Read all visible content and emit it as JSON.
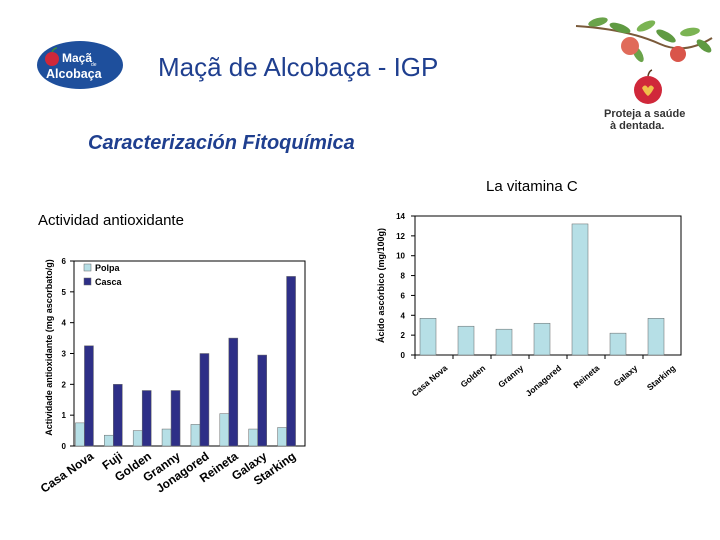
{
  "header": {
    "title": "Maçã de Alcobaça - IGP",
    "subtitle": "Caracterización Fitoquímica",
    "logo_text_line1": "Maçã",
    "logo_text_small": "de",
    "logo_text_line2": "Alcobaça",
    "tagline_line1": "Proteja a saúde",
    "tagline_line2": "à dentada.",
    "colors": {
      "title": "#1f3f8f",
      "logo_bg": "#1e4f9c",
      "apple_red": "#d0283a"
    }
  },
  "section_labels": {
    "vitamin_c": "La vitamina C",
    "antioxidant": "Actividad antioxidante"
  },
  "chart_data": [
    {
      "type": "bar",
      "title": "Actividad antioxidante",
      "ylabel": "Actividade antioxidante (mg ascorbato/g)",
      "xlabel": "",
      "categories": [
        "Casa Nova",
        "Fuji",
        "Golden",
        "Granny",
        "Jonagored",
        "Reineta",
        "Galaxy",
        "Starking"
      ],
      "series": [
        {
          "name": "Polpa",
          "color": "#b6dfe6",
          "values": [
            0.75,
            0.35,
            0.5,
            0.55,
            0.7,
            1.05,
            0.55,
            0.6
          ]
        },
        {
          "name": "Casca",
          "color": "#2e2f87",
          "values": [
            3.25,
            2.0,
            1.8,
            1.8,
            3.0,
            3.5,
            2.95,
            5.5
          ]
        }
      ],
      "ylim": [
        0,
        6
      ],
      "yticks": [
        "0",
        "1",
        "2",
        "3",
        "4",
        "5",
        "6"
      ],
      "legend": "top-left",
      "grid": false
    },
    {
      "type": "bar",
      "title": "La vitamina C",
      "ylabel": "Ácido ascórbico (mg/100g)",
      "xlabel": "",
      "categories": [
        "Casa Nova",
        "Golden",
        "Granny",
        "Jonagored",
        "Reineta",
        "Galaxy",
        "Starking"
      ],
      "values": [
        3.7,
        2.9,
        2.6,
        3.2,
        13.2,
        2.2,
        3.7
      ],
      "color": "#b6dfe6",
      "ylim": [
        0,
        14
      ],
      "yticks": [
        "0",
        "2",
        "4",
        "6",
        "8",
        "10",
        "12",
        "14"
      ],
      "grid": false
    }
  ]
}
